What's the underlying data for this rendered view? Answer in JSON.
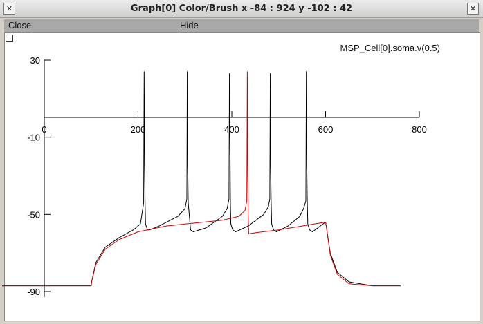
{
  "window": {
    "title": "Graph[0] Color/Brush x -84 : 924  y -102 : 42",
    "left_button_icon": "window-menu-x",
    "close_button_icon": "close-x"
  },
  "menu": {
    "close_label": "Close",
    "hide_label": "Hide"
  },
  "graph": {
    "trace_label": "MSP_Cell[0].soma.v(0.5)"
  },
  "chart_data": {
    "type": "line",
    "title": "",
    "xlabel": "",
    "ylabel": "",
    "xlim": [
      0,
      800
    ],
    "ylim": [
      -90,
      30
    ],
    "x_ticks": [
      "0",
      "200",
      "400",
      "600",
      "800"
    ],
    "y_ticks": [
      "30",
      "-10",
      "-50",
      "-90"
    ],
    "colors": {
      "black": "#000000",
      "red": "#cc0000"
    },
    "series": [
      {
        "color": "black",
        "x": [
          -90,
          100,
          101,
          110,
          130,
          160,
          190,
          205,
          212,
          213,
          214,
          215,
          216,
          220,
          225,
          245,
          285,
          300,
          304,
          305,
          306,
          307,
          312,
          318,
          345,
          380,
          390,
          394,
          395,
          396,
          397,
          398,
          402,
          408,
          435,
          468,
          478,
          481,
          482,
          483,
          484,
          485,
          489,
          495,
          520,
          545,
          553,
          558,
          559,
          560,
          561,
          562,
          566,
          572,
          600,
          602,
          610,
          625,
          650,
          700,
          760
        ],
        "y": [
          -87,
          -87,
          -85,
          -75,
          -67,
          -62,
          -58,
          -55,
          -44,
          24,
          -25,
          -44,
          -55,
          -58,
          -58,
          -56,
          -51,
          -47,
          -42,
          24,
          -25,
          -44,
          -58,
          -59,
          -57,
          -51,
          -47,
          -42,
          23,
          -10,
          -45,
          -55,
          -58,
          -59,
          -56,
          -50,
          -46,
          -42,
          23,
          -25,
          -44,
          -55,
          -58,
          -59,
          -56,
          -51,
          -47,
          -43,
          24,
          -25,
          -44,
          -55,
          -58,
          -59,
          -54,
          -57,
          -70,
          -80,
          -85,
          -87,
          -87
        ]
      },
      {
        "color": "red",
        "x": [
          -90,
          100,
          101,
          110,
          130,
          160,
          200,
          260,
          320,
          380,
          415,
          428,
          432,
          433,
          434,
          435,
          436,
          438,
          450,
          500,
          550,
          600,
          602,
          610,
          625,
          650,
          700,
          760
        ],
        "y": [
          -87,
          -87,
          -85,
          -76,
          -68,
          -63,
          -59,
          -56,
          -54.5,
          -53,
          -51,
          -48,
          -43,
          24,
          -28,
          -50,
          -60,
          -60,
          -59.5,
          -58,
          -56,
          -54,
          -57,
          -71,
          -81,
          -86,
          -87,
          -87
        ]
      }
    ]
  }
}
